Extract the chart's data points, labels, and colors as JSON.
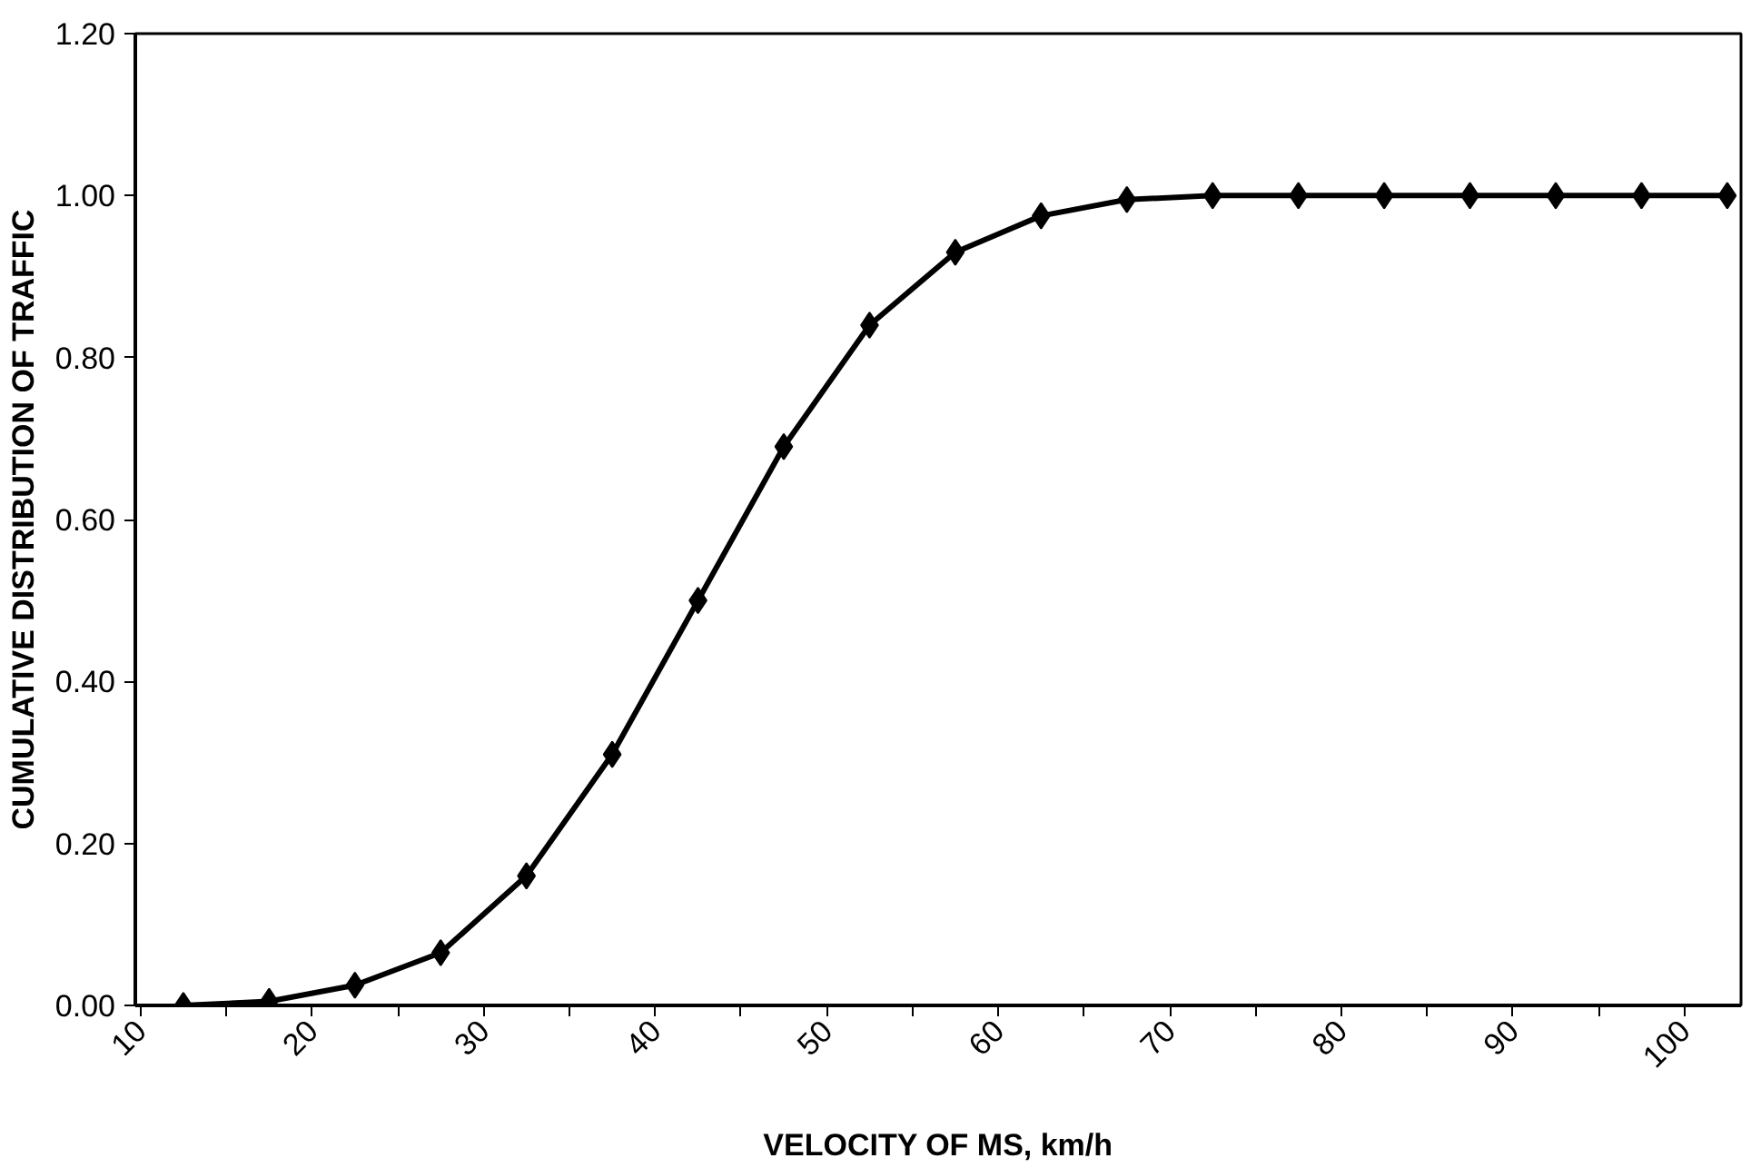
{
  "chart_data": {
    "type": "line",
    "xlabel": "VELOCITY OF MS, km/h",
    "ylabel": "CUMULATIVE DISTRIBUTION OF TRAFFIC",
    "x": [
      12.5,
      17.5,
      22.5,
      27.5,
      32.5,
      37.5,
      42.5,
      47.5,
      52.5,
      57.5,
      62.5,
      67.5,
      72.5,
      77.5,
      82.5,
      87.5,
      92.5,
      97.5,
      102.5
    ],
    "series": [
      {
        "color": "#000000",
        "values": [
          0,
          0.005,
          0.025,
          0.065,
          0.16,
          0.31,
          0.5,
          0.69,
          0.84,
          0.93,
          0.975,
          0.995,
          1,
          1,
          1,
          1,
          1,
          1,
          1
        ]
      }
    ],
    "xlim": [
      9.7,
      103.3
    ],
    "xticks": [
      10,
      {
        "value": 15,
        "label": null
      },
      20,
      {
        "value": 25,
        "label": null
      },
      30,
      {
        "value": 35,
        "label": null
      },
      40,
      {
        "value": 45,
        "label": null
      },
      50,
      {
        "value": 55,
        "label": null
      },
      60,
      {
        "value": 65,
        "label": null
      },
      70,
      {
        "value": 75,
        "label": null
      },
      80,
      {
        "value": 85,
        "label": null
      },
      90,
      {
        "value": 95,
        "label": null
      },
      100
    ],
    "ylim": [
      0,
      1.2
    ],
    "yticks": [
      {
        "value": 0,
        "label": "0.00"
      },
      {
        "value": 0.2,
        "label": "0.20"
      },
      {
        "value": 0.4,
        "label": "0.40"
      },
      {
        "value": 0.6,
        "label": "0.60"
      },
      {
        "value": 0.8,
        "label": "0.80"
      },
      {
        "value": 1.0,
        "label": "1.00"
      },
      {
        "value": 1.2,
        "label": "1.20"
      }
    ],
    "grid": false,
    "marker": "diamond",
    "line_style": "solid"
  }
}
